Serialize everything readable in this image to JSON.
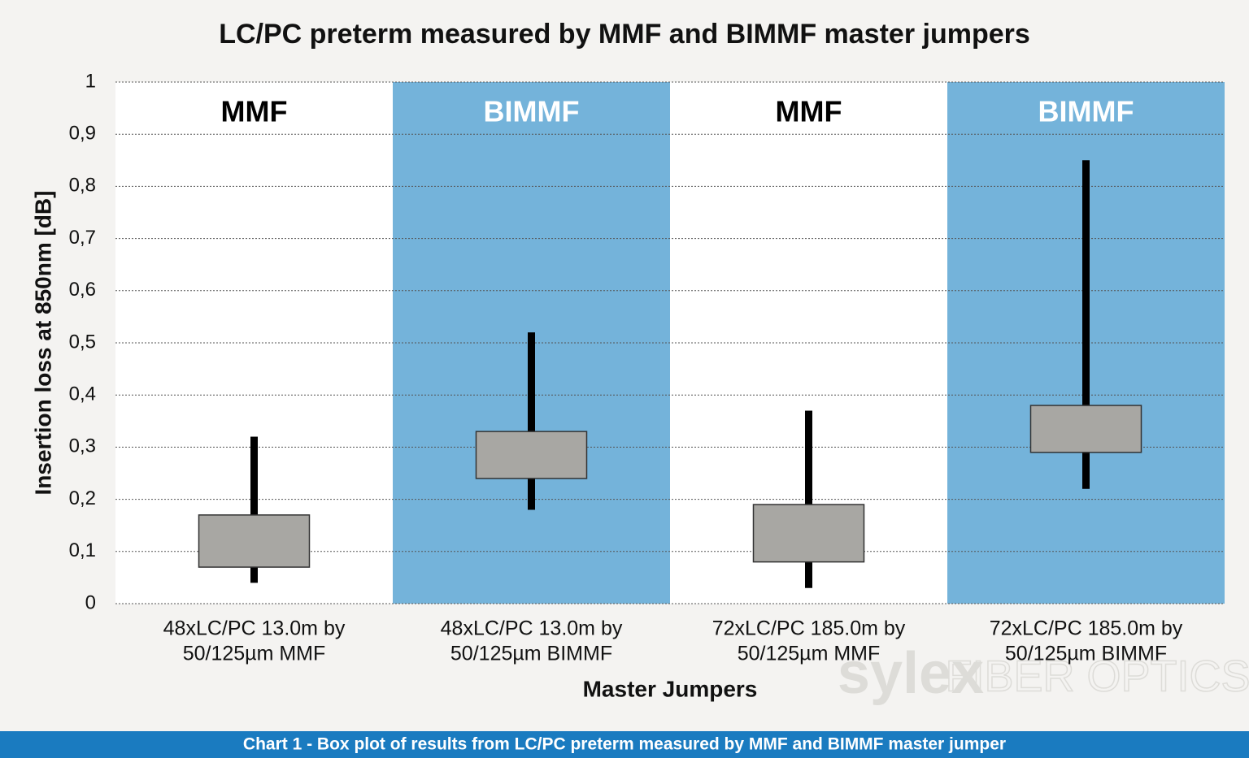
{
  "chart_data": {
    "type": "box",
    "title": "LC/PC preterm measured by MMF and BIMMF master jumpers",
    "y_label": "Insertion loss at 850nm [dB]",
    "x_label": "Master Jumpers",
    "caption": "Chart 1 - Box plot of results from LC/PC preterm measured by MMF and BIMMF master jumper",
    "watermark": [
      "sylex",
      "FIBER OPTICS"
    ],
    "categories": [
      [
        "48xLC/PC 13.0m by",
        "50/125µm MMF"
      ],
      [
        "48xLC/PC 13.0m by",
        "50/125µm BIMMF"
      ],
      [
        "72xLC/PC 185.0m by",
        "50/125µm MMF"
      ],
      [
        "72xLC/PC 185.0m by",
        "50/125µm BIMMF"
      ]
    ],
    "bands": [
      {
        "label": "MMF",
        "color": "#ffffff",
        "text_color": "#000000"
      },
      {
        "label": "BIMMF",
        "color": "#74b3da",
        "text_color": "#ffffff"
      },
      {
        "label": "MMF",
        "color": "#ffffff",
        "text_color": "#000000"
      },
      {
        "label": "BIMMF",
        "color": "#74b3da",
        "text_color": "#ffffff"
      }
    ],
    "boxes": [
      {
        "min": 0.04,
        "q1": 0.07,
        "q3": 0.17,
        "max": 0.32
      },
      {
        "min": 0.18,
        "q1": 0.24,
        "q3": 0.33,
        "max": 0.52
      },
      {
        "min": 0.03,
        "q1": 0.08,
        "q3": 0.19,
        "max": 0.37
      },
      {
        "min": 0.22,
        "q1": 0.29,
        "q3": 0.38,
        "max": 0.85
      }
    ],
    "box_color": "#a8a7a3",
    "whisker_color": "#000000",
    "ylim": [
      0,
      1
    ],
    "yticks": [
      0,
      {
        "value": 0.1,
        "label": "0,1"
      },
      {
        "value": 0.2,
        "label": "0,2"
      },
      {
        "value": 0.3,
        "label": "0,3"
      },
      {
        "value": 0.4,
        "label": "0,4"
      },
      {
        "value": 0.5,
        "label": "0,5"
      },
      {
        "value": 0.6,
        "label": "0,6"
      },
      {
        "value": 0.7,
        "label": "0,7"
      },
      {
        "value": 0.8,
        "label": "0,8"
      },
      {
        "value": 0.9,
        "label": "0,9"
      },
      1
    ],
    "grid": true
  }
}
